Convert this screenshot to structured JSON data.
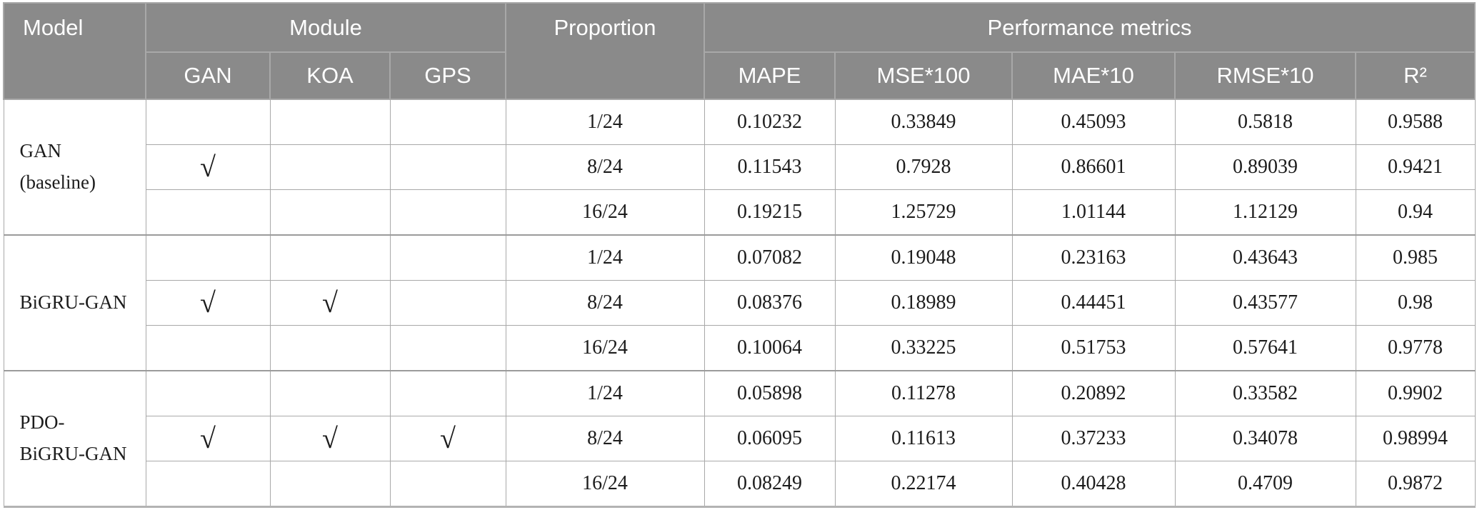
{
  "table": {
    "header": {
      "model": "Model",
      "module": "Module",
      "module_subcols": [
        "GAN",
        "KOA",
        "GPS"
      ],
      "proportion": "Proportion",
      "performance": "Performance metrics",
      "metric_subcols": [
        "MAPE",
        "MSE*100",
        "MAE*10",
        "RMSE*10",
        "R²"
      ]
    },
    "check_symbol": "√",
    "groups": [
      {
        "model_lines": [
          "GAN",
          "(baseline)"
        ],
        "modules_checked": [
          true,
          false,
          false
        ],
        "rows": [
          {
            "proportion": "1/24",
            "mape": "0.10232",
            "mse100": "0.33849",
            "mae10": "0.45093",
            "rmse10": "0.5818",
            "r2": "0.9588"
          },
          {
            "proportion": "8/24",
            "mape": "0.11543",
            "mse100": "0.7928",
            "mae10": "0.86601",
            "rmse10": "0.89039",
            "r2": "0.9421"
          },
          {
            "proportion": "16/24",
            "mape": "0.19215",
            "mse100": "1.25729",
            "mae10": "1.01144",
            "rmse10": "1.12129",
            "r2": "0.94"
          }
        ]
      },
      {
        "model_lines": [
          "BiGRU-GAN"
        ],
        "modules_checked": [
          true,
          true,
          false
        ],
        "rows": [
          {
            "proportion": "1/24",
            "mape": "0.07082",
            "mse100": "0.19048",
            "mae10": "0.23163",
            "rmse10": "0.43643",
            "r2": "0.985"
          },
          {
            "proportion": "8/24",
            "mape": "0.08376",
            "mse100": "0.18989",
            "mae10": "0.44451",
            "rmse10": "0.43577",
            "r2": "0.98"
          },
          {
            "proportion": "16/24",
            "mape": "0.10064",
            "mse100": "0.33225",
            "mae10": "0.51753",
            "rmse10": "0.57641",
            "r2": "0.9778"
          }
        ]
      },
      {
        "model_lines": [
          "PDO-",
          "BiGRU-GAN"
        ],
        "modules_checked": [
          true,
          true,
          true
        ],
        "rows": [
          {
            "proportion": "1/24",
            "mape": "0.05898",
            "mse100": "0.11278",
            "mae10": "0.20892",
            "rmse10": "0.33582",
            "r2": "0.9902"
          },
          {
            "proportion": "8/24",
            "mape": "0.06095",
            "mse100": "0.11613",
            "mae10": "0.37233",
            "rmse10": "0.34078",
            "r2": "0.98994"
          },
          {
            "proportion": "16/24",
            "mape": "0.08249",
            "mse100": "0.22174",
            "mae10": "0.40428",
            "rmse10": "0.4709",
            "r2": "0.9872"
          }
        ]
      }
    ],
    "colors": {
      "header_bg": "#8a8a8a",
      "header_text": "#ffffff",
      "body_text": "#1c1c1c",
      "grid_line": "#a9a9a9",
      "bottom_rule": "#b3b3b3"
    }
  }
}
